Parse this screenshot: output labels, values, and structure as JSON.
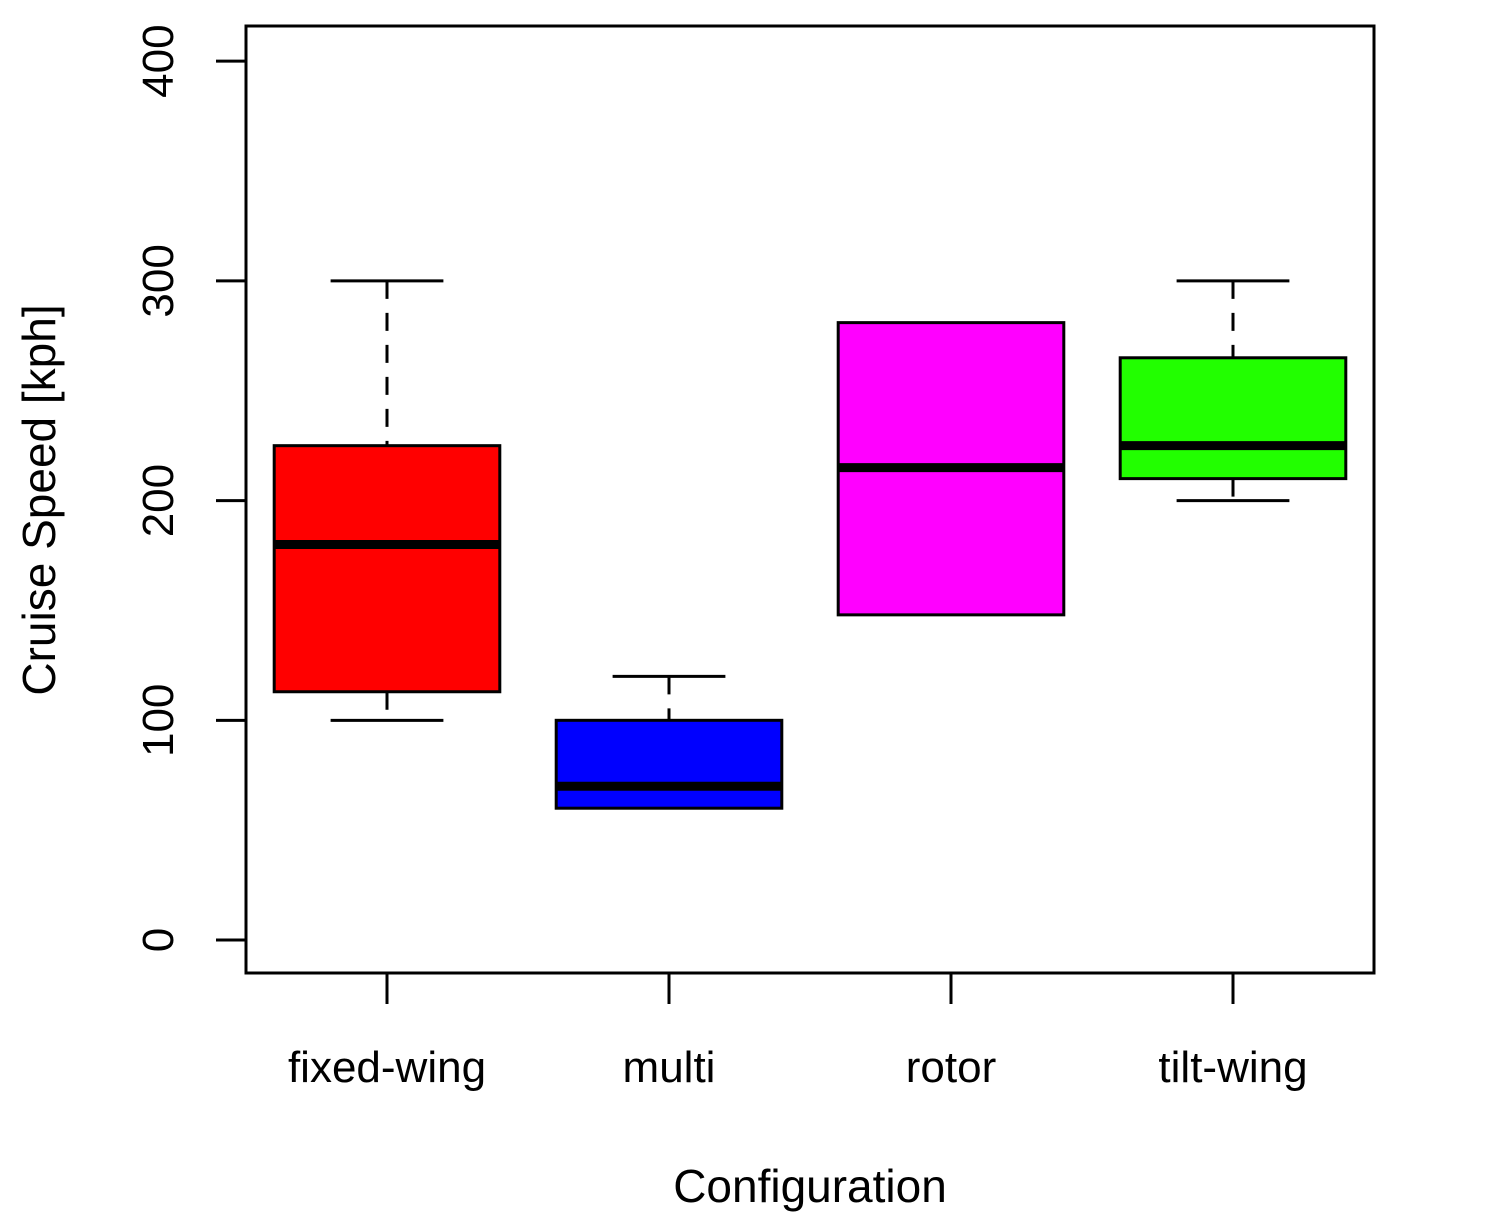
{
  "chart_data": {
    "type": "boxplot",
    "title": "",
    "xlabel": "Configuration",
    "ylabel": "Cruise Speed [kph]",
    "ylim": [
      -15,
      416
    ],
    "yticks": [
      0,
      100,
      200,
      300,
      400
    ],
    "grid": false,
    "categories": [
      "fixed-wing",
      "multi",
      "rotor",
      "tilt-wing"
    ],
    "boxes": [
      {
        "category": "fixed-wing",
        "whisker_low": 100,
        "q1": 113,
        "median": 180,
        "q3": 225,
        "whisker_high": 300,
        "color": "#ff0000"
      },
      {
        "category": "multi",
        "whisker_low": 60,
        "q1": 60,
        "median": 70,
        "q3": 100,
        "whisker_high": 120,
        "color": "#0000ff"
      },
      {
        "category": "rotor",
        "whisker_low": 148,
        "q1": 148,
        "median": 215,
        "q3": 281,
        "whisker_high": 281,
        "color": "#ff00ff"
      },
      {
        "category": "tilt-wing",
        "whisker_low": 200,
        "q1": 210,
        "median": 225,
        "q3": 265,
        "whisker_high": 300,
        "color": "#22ff00"
      }
    ]
  }
}
